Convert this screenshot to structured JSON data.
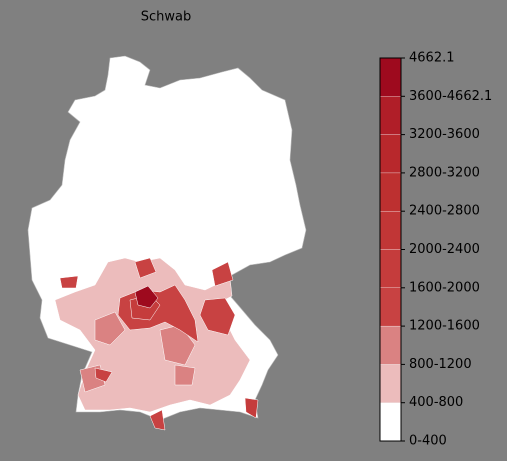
{
  "title": "Schwab",
  "colorbar": {
    "labels": [
      "0-400",
      "400-800",
      "800-1200",
      "1200-1600",
      "1600-2000",
      "2000-2400",
      "2400-2800",
      "2800-3200",
      "3200-3600",
      "3600-4662.1",
      "4662.1"
    ],
    "colors": [
      "#ffffff",
      "#ecbcbc",
      "#da8282",
      "#c84242",
      "#c53c3c",
      "#c13636",
      "#bd3030",
      "#b8282c",
      "#b01e28",
      "#9e0a1e"
    ]
  }
}
